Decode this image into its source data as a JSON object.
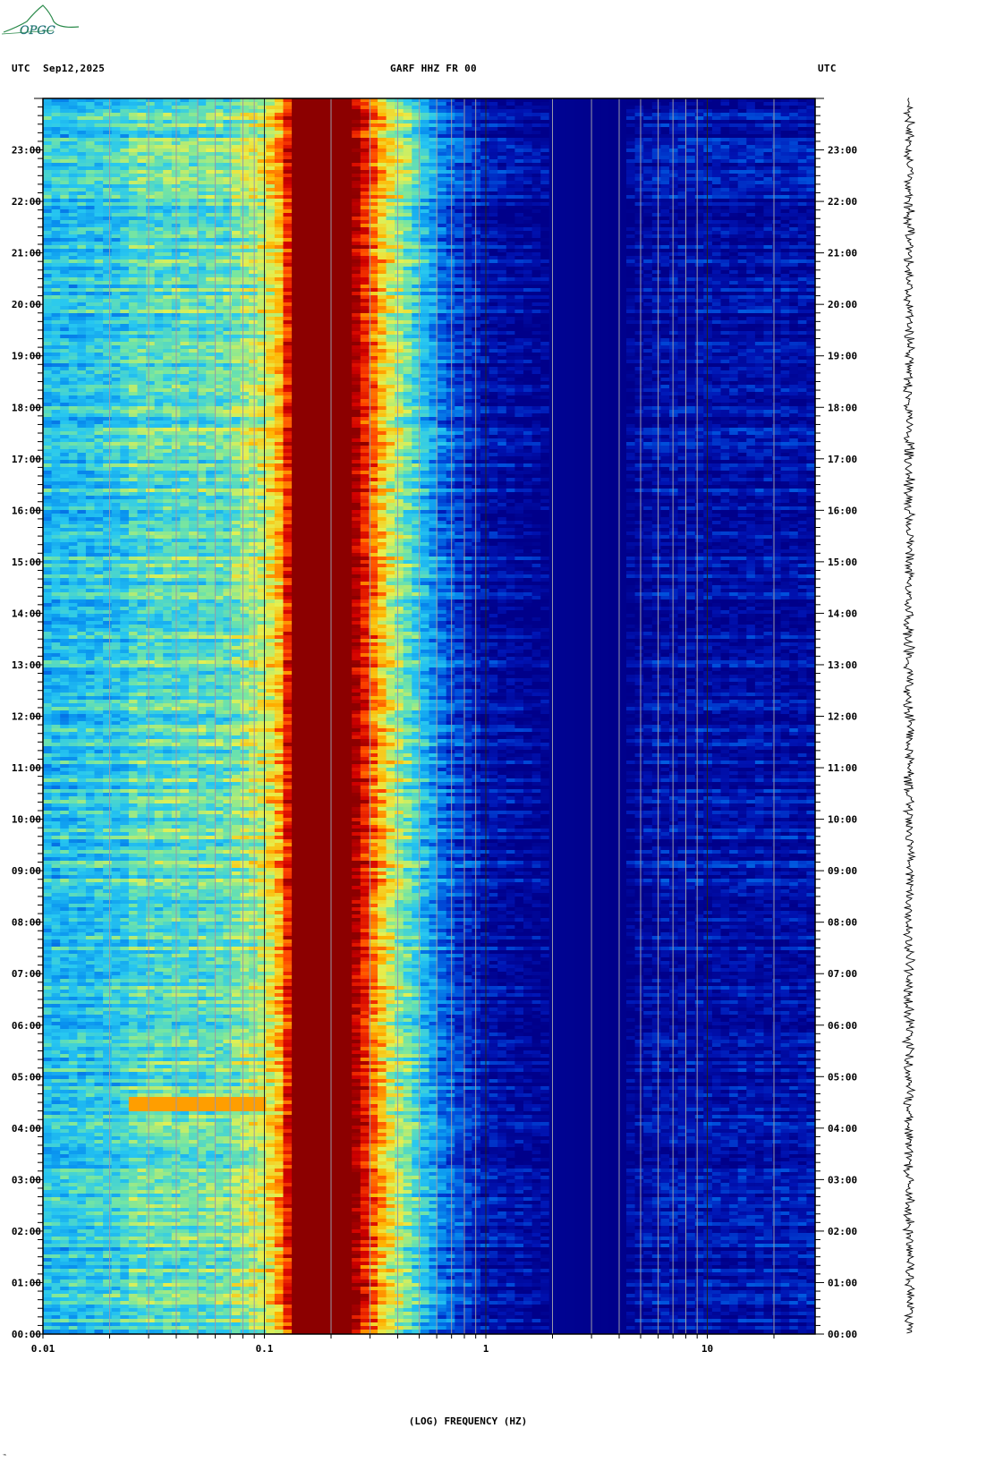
{
  "header": {
    "left_tz": "UTC",
    "date": "Sep12,2025",
    "station": "GARF HHZ FR 00",
    "right_tz": "UTC"
  },
  "logo": {
    "text": "OPGC",
    "color": "#2a8a4a"
  },
  "chart_data": {
    "type": "heatmap",
    "title": "GARF HHZ FR 00",
    "xlabel": "(LOG) FREQUENCY (HZ)",
    "ylabel": "",
    "x_scale": "log",
    "xlim": [
      0.01,
      30
    ],
    "x_tick_labels": [
      "0.01",
      "0.1",
      "1",
      "10"
    ],
    "x_ticks": [
      0.01,
      0.1,
      1,
      10
    ],
    "grid_frequencies": [
      0.02,
      0.03,
      0.04,
      0.05,
      0.06,
      0.07,
      0.08,
      0.09,
      0.2,
      0.3,
      0.4,
      0.5,
      0.6,
      0.7,
      0.8,
      0.9,
      2,
      3,
      4,
      5,
      6,
      7,
      8,
      9,
      20
    ],
    "ylim_hours": [
      0,
      24
    ],
    "y_tick_labels": [
      "00:00",
      "01:00",
      "02:00",
      "03:00",
      "04:00",
      "05:00",
      "06:00",
      "07:00",
      "08:00",
      "09:00",
      "10:00",
      "11:00",
      "12:00",
      "13:00",
      "14:00",
      "15:00",
      "16:00",
      "17:00",
      "18:00",
      "19:00",
      "20:00",
      "21:00",
      "22:00",
      "23:00"
    ],
    "colormap": [
      "#00008a",
      "#0014b4",
      "#0050dc",
      "#0a96f0",
      "#28c8f0",
      "#78e6a0",
      "#e6f050",
      "#ffb400",
      "#ff4600",
      "#d20000",
      "#8c0000"
    ],
    "spectral_profile": [
      {
        "freq": 0.01,
        "level": 0.38
      },
      {
        "freq": 0.024,
        "level": 0.42
      },
      {
        "freq": 0.025,
        "level": 0.46
      },
      {
        "freq": 0.07,
        "level": 0.48
      },
      {
        "freq": 0.075,
        "level": 0.52
      },
      {
        "freq": 0.1,
        "level": 0.58
      },
      {
        "freq": 0.12,
        "level": 0.72
      },
      {
        "freq": 0.135,
        "level": 1.0
      },
      {
        "freq": 0.25,
        "level": 1.0
      },
      {
        "freq": 0.3,
        "level": 0.8
      },
      {
        "freq": 0.37,
        "level": 0.6
      },
      {
        "freq": 0.5,
        "level": 0.42
      },
      {
        "freq": 0.65,
        "level": 0.24
      },
      {
        "freq": 1.0,
        "level": 0.09
      },
      {
        "freq": 2.0,
        "level": 0.02
      },
      {
        "freq": 4.0,
        "level": 0.0
      },
      {
        "freq": 6.0,
        "level": 0.08
      },
      {
        "freq": 30.0,
        "level": 0.08
      }
    ],
    "events": [
      {
        "hour_start": 4.35,
        "hour_end": 4.62,
        "freq_min": 0.024,
        "freq_max": 0.1,
        "level": 0.72
      }
    ]
  }
}
